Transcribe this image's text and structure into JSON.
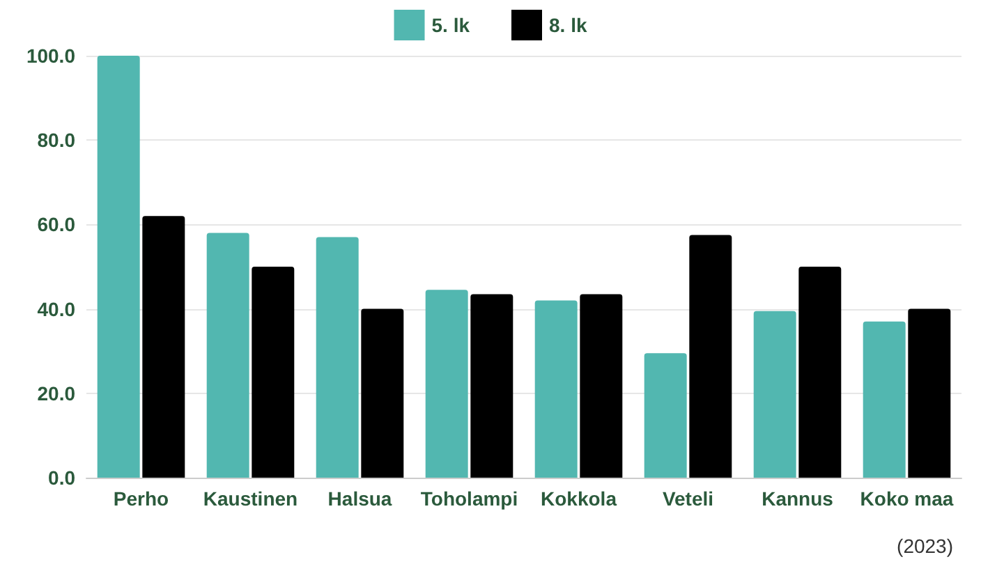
{
  "chart_data": {
    "type": "bar",
    "categories": [
      "Perho",
      "Kaustinen",
      "Halsua",
      "Toholampi",
      "Kokkola",
      "Veteli",
      "Kannus",
      "Koko maa"
    ],
    "series": [
      {
        "name": "5. lk",
        "color": "#52b7b0",
        "values": [
          100,
          58,
          57,
          44.5,
          42,
          29.5,
          39.5,
          37
        ]
      },
      {
        "name": "8. lk",
        "color": "#000000",
        "values": [
          62,
          50,
          40,
          43.5,
          43.5,
          57.5,
          50,
          40
        ]
      }
    ],
    "ylim": [
      0,
      100
    ],
    "yticks": [
      {
        "value": 0,
        "label": "0.0"
      },
      {
        "value": 20,
        "label": "20.0"
      },
      {
        "value": 40,
        "label": "40.0"
      },
      {
        "value": 60,
        "label": "60.0"
      },
      {
        "value": 80,
        "label": "80.0"
      },
      {
        "value": 100,
        "label": "100.0"
      }
    ],
    "grid": "y",
    "legend": "top",
    "annotations": [
      "(2023)"
    ]
  }
}
